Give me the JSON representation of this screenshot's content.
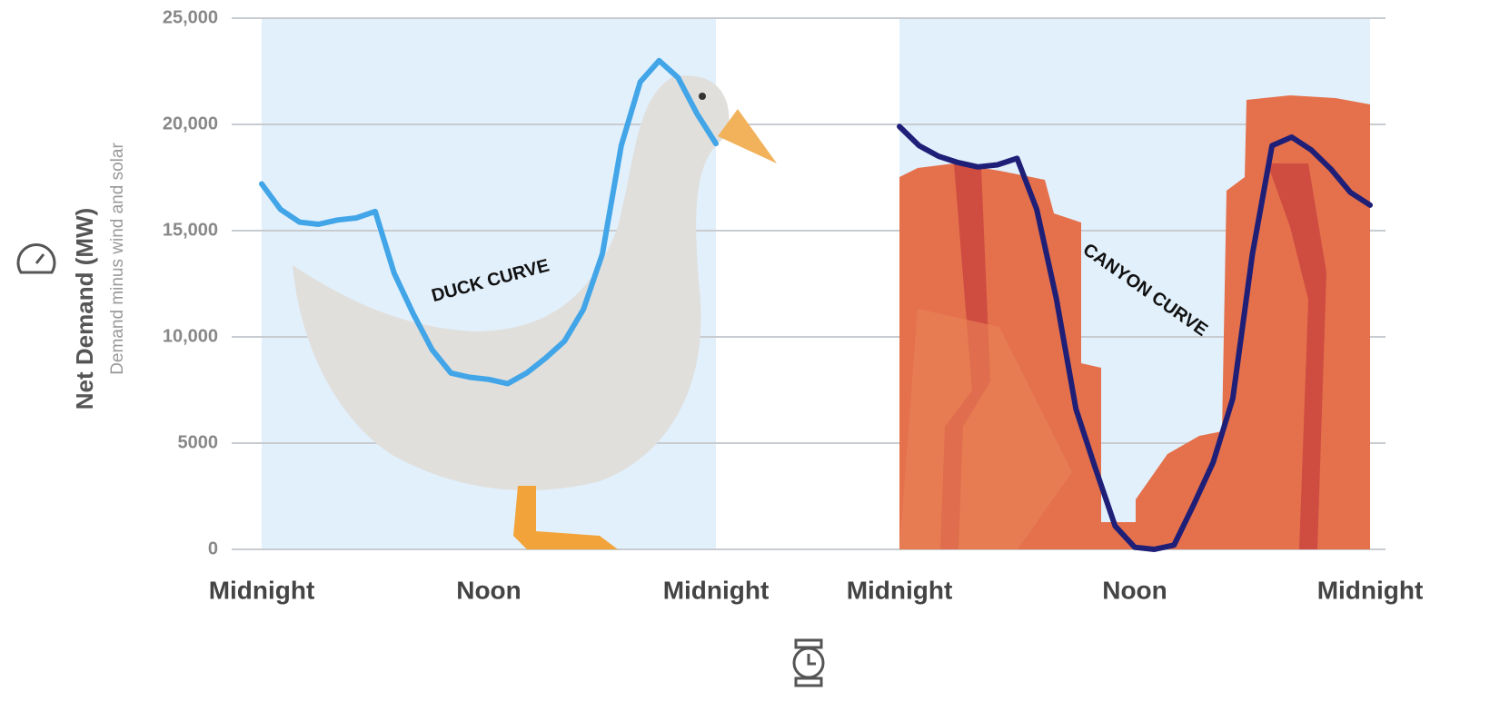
{
  "chart_data": [
    {
      "type": "line",
      "ylabel": "Net Demand (MW)",
      "ysublabel": "Demand minus wind and solar",
      "annotation": "DUCK CURVE",
      "color": "#42a5e8",
      "x": [
        0,
        1,
        2,
        3,
        4,
        5,
        6,
        7,
        8,
        9,
        10,
        11,
        12,
        13,
        14,
        15,
        16,
        17,
        18,
        19,
        20,
        21,
        22,
        23,
        24
      ],
      "values": [
        17200,
        16000,
        15400,
        15300,
        15500,
        15600,
        15900,
        13000,
        11100,
        9400,
        8300,
        8100,
        8000,
        7800,
        8300,
        9000,
        9800,
        11300,
        13900,
        19000,
        22000,
        23000,
        22200,
        20500,
        19100
      ],
      "xlim": [
        0,
        24
      ],
      "xticks": [
        {
          "value": 0,
          "label": "Midnight"
        },
        {
          "value": 12,
          "label": "Noon"
        },
        {
          "value": 24,
          "label": "Midnight"
        }
      ],
      "ylim": [
        0,
        25000
      ],
      "yticks": [
        0,
        5000,
        {
          "value": 10000,
          "label": "10,000"
        },
        {
          "value": 15000,
          "label": "15,000"
        },
        {
          "value": 20000,
          "label": "20,000"
        },
        {
          "value": 25000,
          "label": "25,000"
        }
      ],
      "grid": true
    },
    {
      "type": "line",
      "annotation": "CANYON CURVE",
      "color": "#1f1f78",
      "x": [
        0,
        1,
        2,
        3,
        4,
        5,
        6,
        7,
        8,
        9,
        10,
        11,
        12,
        13,
        14,
        15,
        16,
        17,
        18,
        19,
        20,
        21,
        22,
        23,
        24
      ],
      "values": [
        19900,
        19000,
        18500,
        18200,
        18000,
        18100,
        18400,
        16000,
        11800,
        6600,
        3800,
        1100,
        100,
        0,
        200,
        2100,
        4100,
        7100,
        13900,
        19000,
        19400,
        18800,
        17900,
        16800,
        16200
      ],
      "xlim": [
        0,
        24
      ],
      "xticks": [
        {
          "value": 0,
          "label": "Midnight"
        },
        {
          "value": 12,
          "label": "Noon"
        },
        {
          "value": 24,
          "label": "Midnight"
        }
      ],
      "ylim": [
        0,
        25000
      ]
    }
  ]
}
